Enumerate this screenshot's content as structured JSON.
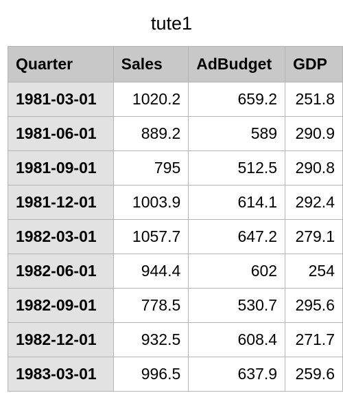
{
  "title": "tute1",
  "table": {
    "columns": [
      "Quarter",
      "Sales",
      "AdBudget",
      "GDP"
    ],
    "rows": [
      [
        "1981-03-01",
        "1020.2",
        "659.2",
        "251.8"
      ],
      [
        "1981-06-01",
        "889.2",
        "589",
        "290.9"
      ],
      [
        "1981-09-01",
        "795",
        "512.5",
        "290.8"
      ],
      [
        "1981-12-01",
        "1003.9",
        "614.1",
        "292.4"
      ],
      [
        "1982-03-01",
        "1057.7",
        "647.2",
        "279.1"
      ],
      [
        "1982-06-01",
        "944.4",
        "602",
        "254"
      ],
      [
        "1982-09-01",
        "778.5",
        "530.7",
        "295.6"
      ],
      [
        "1982-12-01",
        "932.5",
        "608.4",
        "271.7"
      ],
      [
        "1983-03-01",
        "996.5",
        "637.9",
        "259.6"
      ]
    ]
  },
  "colors": {
    "header_bg": "#c8c8c8",
    "first_column_bg": "#e2e2e2",
    "grid_line": "#b3b3b3"
  }
}
